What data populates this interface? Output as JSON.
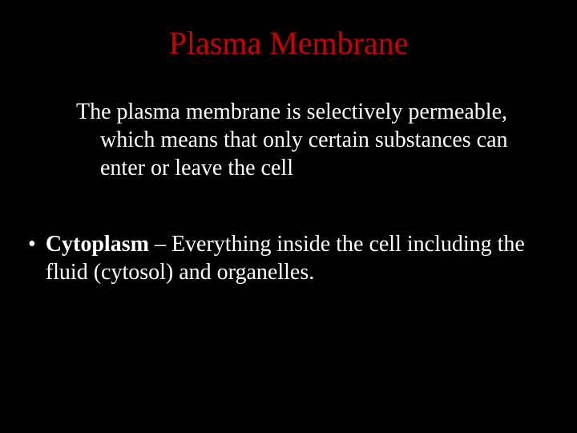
{
  "slide": {
    "background_color": "#000000",
    "title": {
      "text": "Plasma Membrane",
      "color": "#cc0000",
      "fontsize": 40
    },
    "paragraph": {
      "text": "The plasma membrane is selectively permeable, which means that only certain substances can enter or leave the cell",
      "color": "#ffffff",
      "fontsize": 28
    },
    "bullet": {
      "mark": "•",
      "bold_term": "Cytoplasm",
      "separator": " – ",
      "rest": "Everything inside the cell including the fluid (cytosol) and organelles.",
      "color": "#ffffff",
      "fontsize": 28
    }
  }
}
